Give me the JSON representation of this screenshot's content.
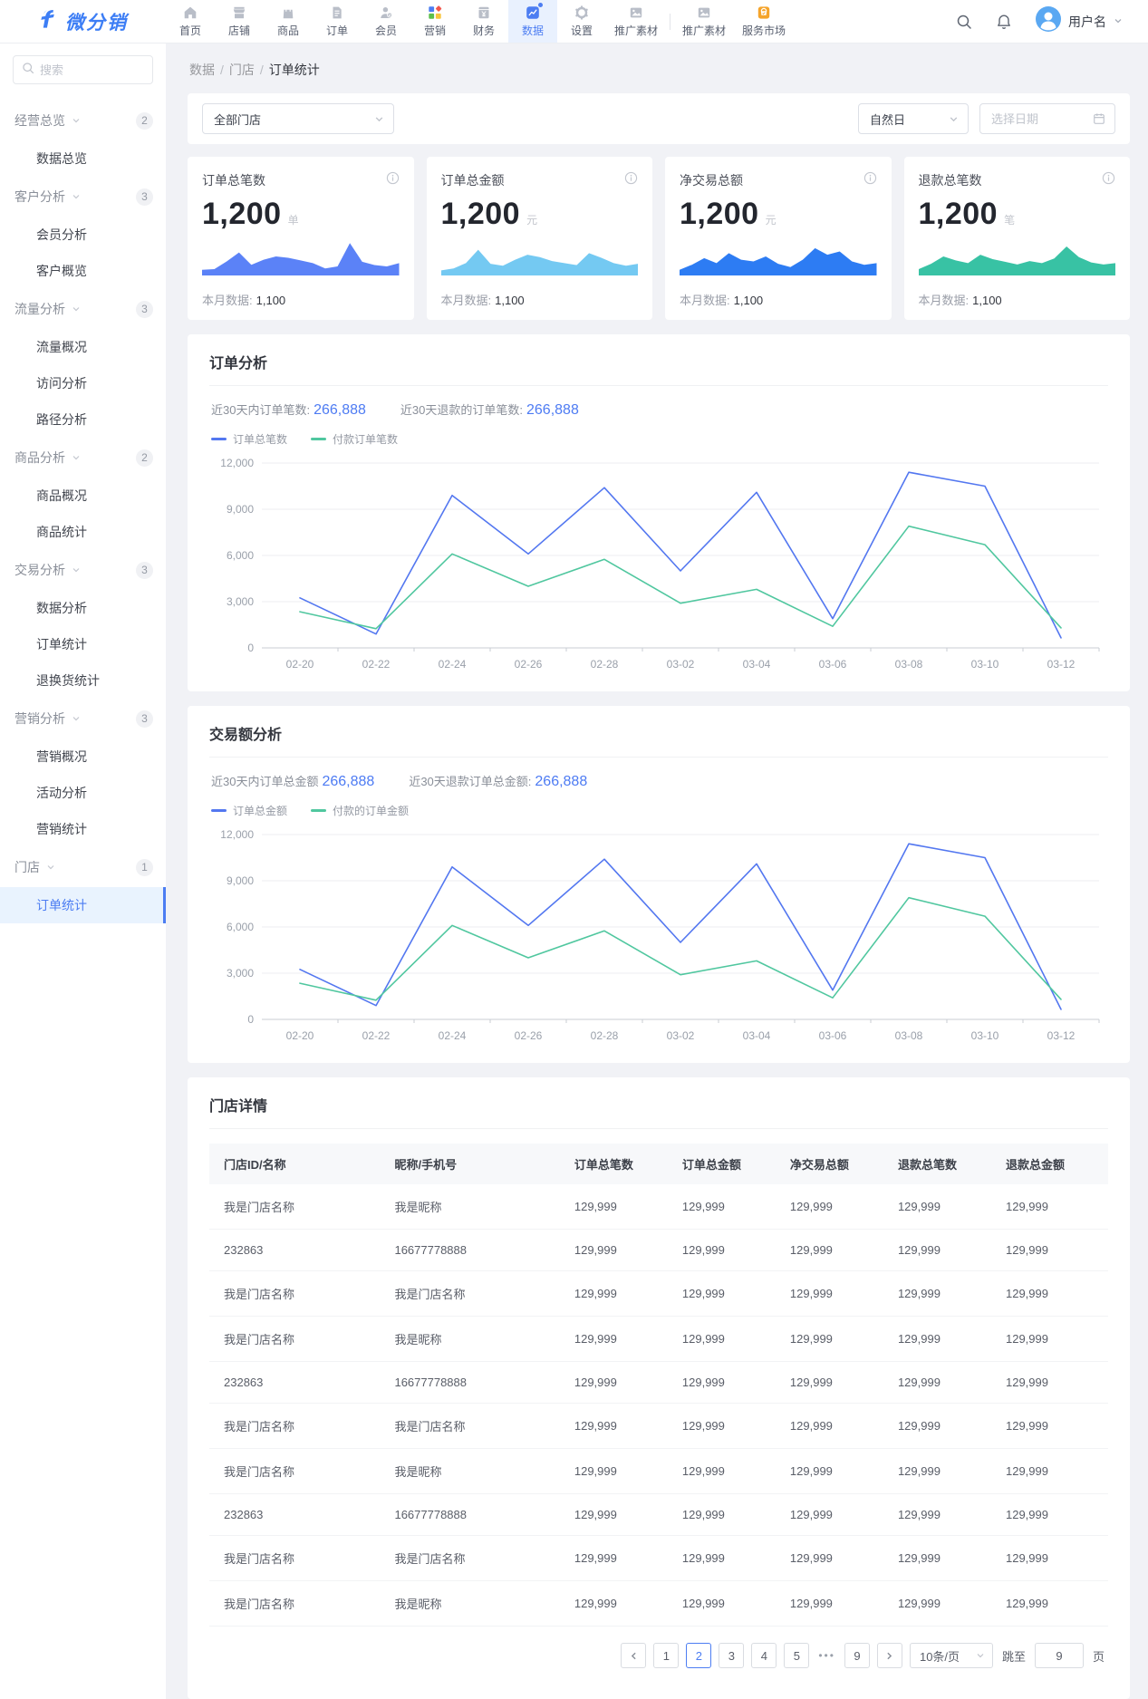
{
  "navbar": {
    "logo_text": "微分销",
    "items": [
      {
        "label": "首页",
        "icon": "home"
      },
      {
        "label": "店铺",
        "icon": "store"
      },
      {
        "label": "商品",
        "icon": "goods"
      },
      {
        "label": "订单",
        "icon": "order"
      },
      {
        "label": "会员",
        "icon": "member"
      },
      {
        "label": "营销",
        "icon": "marketing"
      },
      {
        "label": "财务",
        "icon": "finance"
      },
      {
        "label": "数据",
        "icon": "data",
        "active": true
      },
      {
        "label": "设置",
        "icon": "settings"
      },
      {
        "label": "推广素材",
        "icon": "media"
      },
      {
        "divider": true
      },
      {
        "label": "推广素材",
        "icon": "media"
      },
      {
        "label": "服务市场",
        "icon": "market"
      }
    ],
    "user_name": "用户名"
  },
  "sidebar": {
    "search_placeholder": "搜索",
    "groups": [
      {
        "label": "经营总览",
        "badge": "2",
        "children": [
          "数据总览"
        ]
      },
      {
        "label": "客户分析",
        "badge": "3",
        "children": [
          "会员分析",
          "客户概览"
        ]
      },
      {
        "label": "流量分析",
        "badge": "3",
        "children": [
          "流量概况",
          "访问分析",
          "路径分析"
        ]
      },
      {
        "label": "商品分析",
        "badge": "2",
        "children": [
          "商品概况",
          "商品统计"
        ]
      },
      {
        "label": "交易分析",
        "badge": "3",
        "children": [
          "数据分析",
          "订单统计",
          "退换货统计"
        ]
      },
      {
        "label": "营销分析",
        "badge": "3",
        "children": [
          "营销概况",
          "活动分析",
          "营销统计"
        ]
      },
      {
        "label": "门店",
        "badge": "1",
        "children": [
          "订单统计"
        ],
        "selected_index": 0
      }
    ]
  },
  "main": {
    "breadcrumb": [
      "数据",
      "门店",
      "订单统计"
    ],
    "filters": {
      "store_select": "全部门店",
      "period_select": "自然日",
      "date_placeholder": "选择日期"
    },
    "stat_cards": [
      {
        "title": "订单总笔数",
        "value": "1,200",
        "unit": "单",
        "footer_label": "本月数据:",
        "footer_value": "1,100",
        "color": "#5b82f7",
        "spark": [
          10,
          12,
          35,
          62,
          25,
          40,
          50,
          46,
          38,
          30,
          14,
          20,
          90,
          34,
          24,
          20,
          30
        ]
      },
      {
        "title": "订单总金额",
        "value": "1,200",
        "unit": "元",
        "footer_label": "本月数据:",
        "footer_value": "1,100",
        "color": "#74c9f2",
        "spark": [
          8,
          14,
          30,
          70,
          28,
          22,
          40,
          55,
          48,
          36,
          30,
          24,
          60,
          46,
          30,
          22,
          28
        ]
      },
      {
        "title": "净交易总额",
        "value": "1,200",
        "unit": "元",
        "footer_label": "本月数据:",
        "footer_value": "1,100",
        "color": "#2d7cf3",
        "spark": [
          10,
          25,
          45,
          30,
          60,
          40,
          35,
          50,
          28,
          18,
          40,
          75,
          55,
          65,
          35,
          25,
          30
        ]
      },
      {
        "title": "退款总笔数",
        "value": "1,200",
        "unit": "笔",
        "footer_label": "本月数据:",
        "footer_value": "1,100",
        "color": "#38c2a4",
        "spark": [
          12,
          28,
          50,
          38,
          30,
          55,
          42,
          34,
          26,
          36,
          30,
          44,
          80,
          48,
          32,
          26,
          30
        ]
      }
    ],
    "order_panel": {
      "title": "订单分析",
      "stat1_label": "近30天内订单笔数:",
      "stat1_value": "266,888",
      "stat2_label": "近30天退款的订单笔数:",
      "stat2_value": "266,888"
    },
    "trade_panel": {
      "title": "交易额分析",
      "stat1_label": "近30天内订单总金额",
      "stat1_value": "266,888",
      "stat2_label": "近30天退款订单总金额:",
      "stat2_value": "266,888"
    },
    "table_panel": {
      "title": "门店详情",
      "columns": [
        "门店ID/名称",
        "昵称/手机号",
        "订单总笔数",
        "订单总金额",
        "净交易总额",
        "退款总笔数",
        "退款总金额"
      ],
      "rows": [
        [
          "我是门店名称",
          "我是昵称",
          "129,999",
          "129,999",
          "129,999",
          "129,999",
          "129,999"
        ],
        [
          "232863",
          "16677778888",
          "129,999",
          "129,999",
          "129,999",
          "129,999",
          "129,999"
        ],
        [
          "我是门店名称",
          "我是门店名称",
          "129,999",
          "129,999",
          "129,999",
          "129,999",
          "129,999"
        ],
        [
          "我是门店名称",
          "我是昵称",
          "129,999",
          "129,999",
          "129,999",
          "129,999",
          "129,999"
        ],
        [
          "232863",
          "16677778888",
          "129,999",
          "129,999",
          "129,999",
          "129,999",
          "129,999"
        ],
        [
          "我是门店名称",
          "我是门店名称",
          "129,999",
          "129,999",
          "129,999",
          "129,999",
          "129,999"
        ],
        [
          "我是门店名称",
          "我是昵称",
          "129,999",
          "129,999",
          "129,999",
          "129,999",
          "129,999"
        ],
        [
          "232863",
          "16677778888",
          "129,999",
          "129,999",
          "129,999",
          "129,999",
          "129,999"
        ],
        [
          "我是门店名称",
          "我是门店名称",
          "129,999",
          "129,999",
          "129,999",
          "129,999",
          "129,999"
        ],
        [
          "我是门店名称",
          "我是昵称",
          "129,999",
          "129,999",
          "129,999",
          "129,999",
          "129,999"
        ]
      ],
      "pagination": {
        "pages": [
          "1",
          "2",
          "3",
          "4",
          "5",
          "•••",
          "9"
        ],
        "active_page": "2",
        "page_size": "10条/页",
        "jump_label": "跳至",
        "jump_value": "9",
        "jump_suffix": "页"
      }
    }
  },
  "chart_data": [
    {
      "type": "line",
      "title": "订单分析",
      "categories": [
        "02-20",
        "02-22",
        "02-24",
        "02-26",
        "02-28",
        "03-02",
        "03-04",
        "03-06",
        "03-08",
        "03-10",
        "03-12"
      ],
      "series": [
        {
          "name": "订单总笔数",
          "color": "#5377f0",
          "values": [
            3250,
            900,
            9900,
            6100,
            10400,
            5000,
            10100,
            1900,
            11400,
            10500,
            650
          ]
        },
        {
          "name": "付款订单笔数",
          "color": "#50c79f",
          "values": [
            2350,
            1250,
            6100,
            4000,
            5750,
            2900,
            3800,
            1400,
            7900,
            6700,
            1300
          ]
        }
      ],
      "ylim": [
        0,
        12000
      ],
      "yticks": [
        0,
        3000,
        6000,
        9000,
        12000
      ],
      "ytick_labels": [
        "0",
        "3,000",
        "6,000",
        "9,000",
        "12,000"
      ],
      "grid": true,
      "legend_position": "top-left"
    },
    {
      "type": "line",
      "title": "交易额分析",
      "categories": [
        "02-20",
        "02-22",
        "02-24",
        "02-26",
        "02-28",
        "03-02",
        "03-04",
        "03-06",
        "03-08",
        "03-10",
        "03-12"
      ],
      "series": [
        {
          "name": "订单总金额",
          "color": "#5377f0",
          "values": [
            3250,
            900,
            9900,
            6100,
            10400,
            5000,
            10100,
            1900,
            11400,
            10500,
            650
          ]
        },
        {
          "name": "付款的订单金额",
          "color": "#50c79f",
          "values": [
            2350,
            1250,
            6100,
            4000,
            5750,
            2900,
            3800,
            1400,
            7900,
            6700,
            1300
          ]
        }
      ],
      "ylim": [
        0,
        12000
      ],
      "yticks": [
        0,
        3000,
        6000,
        9000,
        12000
      ],
      "ytick_labels": [
        "0",
        "3,000",
        "6,000",
        "9,000",
        "12,000"
      ],
      "grid": true,
      "legend_position": "top-left"
    }
  ]
}
